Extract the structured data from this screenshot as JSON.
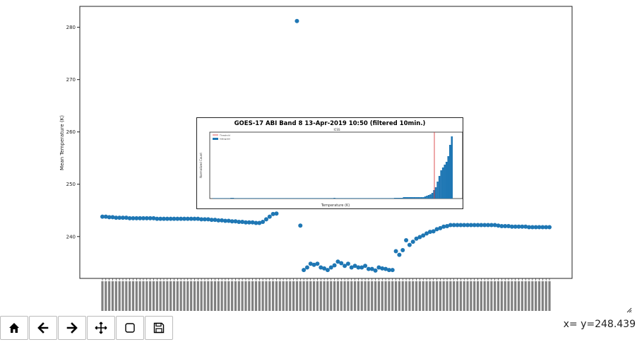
{
  "chart_data": [
    {
      "type": "scatter",
      "title": "",
      "xlabel": "",
      "ylabel": "Mean Temperature (K)",
      "ylim": [
        232,
        284
      ],
      "yticks": [
        240,
        250,
        260,
        270,
        280
      ],
      "grid": false,
      "color": "#1f77b4",
      "x_tick_labels_note_illegible": true,
      "series": [
        {
          "values": [
            243.8,
            243.8,
            243.7,
            243.7,
            243.6,
            243.6,
            243.6,
            243.6,
            243.5,
            243.5,
            243.5,
            243.5,
            243.5,
            243.5,
            243.5,
            243.5,
            243.4,
            243.4,
            243.4,
            243.4,
            243.4,
            243.4,
            243.4,
            243.4,
            243.4,
            243.4,
            243.4,
            243.4,
            243.4,
            243.3,
            243.3,
            243.3,
            243.2,
            243.2,
            243.1,
            243.1,
            243.0,
            243.0,
            242.9,
            242.9,
            242.8,
            242.8,
            242.7,
            242.7,
            242.7,
            242.6,
            242.6,
            242.8,
            243.3,
            243.8,
            244.3,
            244.4,
            null,
            null,
            null,
            null,
            null,
            281.2,
            242.1,
            233.6,
            234.1,
            234.8,
            234.6,
            234.8,
            234.1,
            233.9,
            233.6,
            234.1,
            234.5,
            235.2,
            234.9,
            234.4,
            234.8,
            234.1,
            234.4,
            234.1,
            234.1,
            234.4,
            233.8,
            233.8,
            233.5,
            234.1,
            233.9,
            233.8,
            233.6,
            233.6,
            237.2,
            236.5,
            237.4,
            239.3,
            238.4,
            239.0,
            239.6,
            239.9,
            240.2,
            240.6,
            240.9,
            241.0,
            241.4,
            241.6,
            241.9,
            242.0,
            242.2,
            242.2,
            242.2,
            242.2,
            242.2,
            242.2,
            242.2,
            242.2,
            242.2,
            242.2,
            242.2,
            242.2,
            242.2,
            242.2,
            242.1,
            242.0,
            242.0,
            242.0,
            241.9,
            241.9,
            241.9,
            241.9,
            241.9,
            241.8,
            241.8,
            241.8,
            241.8,
            241.8,
            241.8,
            241.8
          ]
        }
      ]
    },
    {
      "type": "bar",
      "title": "GOES-17 ABI Band 8 13-Apr-2019 10:50 (filtered 10min.)",
      "subtitle": "ICSS",
      "xlabel": "Temperature (K)",
      "ylabel": "Normalized Count",
      "legend": [
        "Threshold",
        "histogram"
      ],
      "legend_position": "top-left",
      "threshold_color": "#d62728",
      "bar_color": "#1f77b4",
      "values": [
        0,
        0,
        0,
        0,
        0,
        0,
        0,
        0,
        0,
        0,
        0.5,
        0.5,
        0,
        0,
        0,
        0,
        0,
        0,
        0,
        0,
        0,
        0,
        0,
        0,
        0,
        0,
        0,
        0,
        0,
        0,
        0,
        0,
        0,
        0,
        0,
        0,
        0,
        0,
        0,
        0,
        0,
        0,
        0,
        0,
        0,
        0,
        0,
        0,
        0,
        0,
        0,
        0,
        0,
        0,
        0,
        0,
        0,
        0,
        0,
        0,
        0,
        0,
        0,
        0,
        0,
        0,
        0,
        0,
        0.5,
        0,
        0,
        0,
        0,
        0,
        0,
        0,
        0,
        0,
        0,
        0,
        0,
        0,
        0,
        0,
        0,
        0,
        0,
        0,
        0,
        0,
        0,
        0,
        0,
        0,
        0,
        0,
        0,
        0,
        0,
        0,
        0,
        0,
        0.5,
        0.5,
        0.5,
        0.5,
        0.5,
        1,
        1,
        1,
        1,
        1,
        1,
        1,
        1,
        1,
        1,
        1,
        1,
        1.5,
        2,
        2.5,
        3,
        4,
        6,
        8,
        12,
        16,
        20,
        22,
        24,
        26,
        30,
        38,
        44
      ]
    }
  ],
  "status": {
    "readout": "x= y=248.439"
  },
  "toolbar": {
    "buttons": [
      {
        "name": "home-button",
        "icon": "home-icon"
      },
      {
        "name": "back-button",
        "icon": "arrow-left-icon"
      },
      {
        "name": "forward-button",
        "icon": "arrow-right-icon"
      },
      {
        "name": "pan-button",
        "icon": "move-icon"
      },
      {
        "name": "zoom-button",
        "icon": "square-icon"
      },
      {
        "name": "save-button",
        "icon": "save-icon"
      }
    ]
  }
}
